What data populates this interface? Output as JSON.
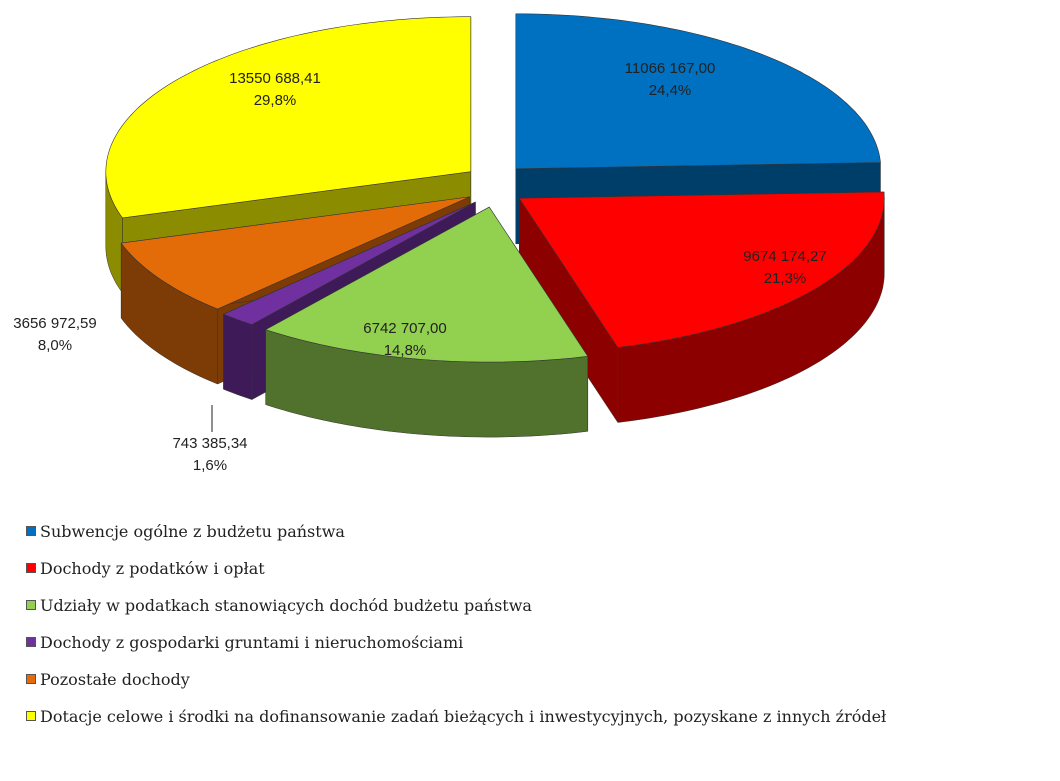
{
  "chart_data": {
    "type": "pie3d",
    "categories": [
      "Subwencje ogólne z budżetu państwa",
      "Dochody z podatków i opłat",
      "Udziały w podatkach stanowiących dochód budżetu państwa",
      "Dochody z gospodarki gruntami i nieruchomościami",
      "Pozostałe dochody",
      "Dotacje celowe i środki na dofinansowanie zadań bieżących i inwestycyjnych, pozyskane z innych źródeł"
    ],
    "values": [
      11066167.0,
      9674174.27,
      6742707.0,
      743385.34,
      3656972.59,
      13550688.41
    ],
    "value_labels": [
      "11066 167,00",
      "9674 174,27",
      "6742 707,00",
      "743 385,34",
      "3656 972,59",
      "13550 688,41"
    ],
    "percentages": [
      24.4,
      21.3,
      14.8,
      1.6,
      8.0,
      29.8
    ],
    "percentage_labels": [
      "24,4%",
      "21,3%",
      "14,8%",
      "1,6%",
      "8,0%",
      "29,8%"
    ],
    "colors": [
      "#0070c0",
      "#ff0000",
      "#92d050",
      "#7030a0",
      "#e36c09",
      "#ffff00"
    ],
    "legend": "bottom"
  }
}
